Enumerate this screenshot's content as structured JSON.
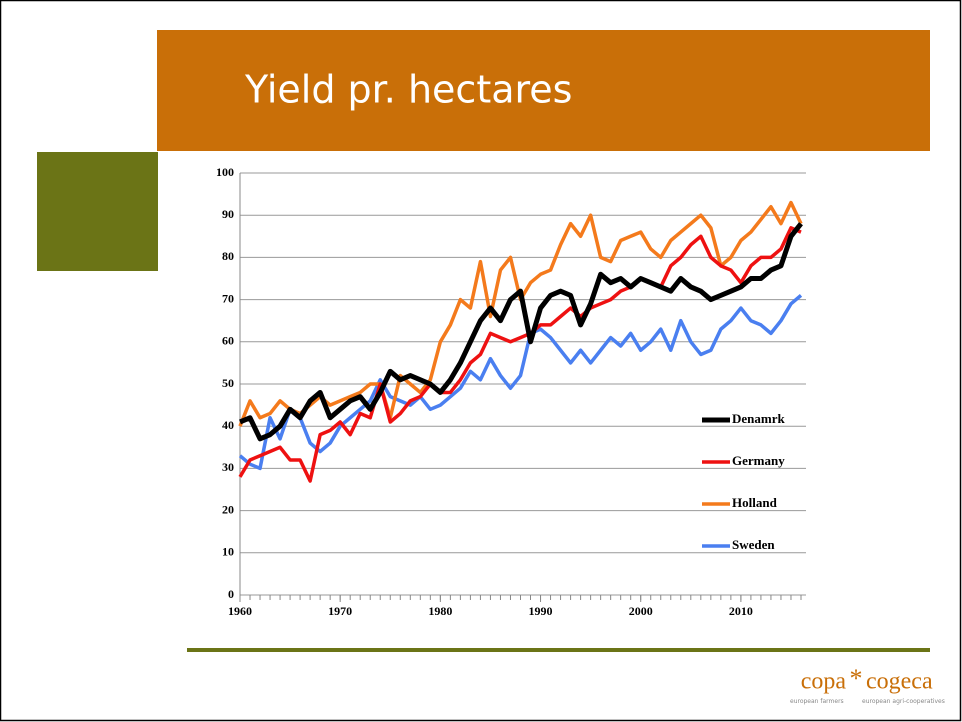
{
  "chart_data": {
    "type": "line",
    "title": "Yield pr. hectares",
    "x": [
      1960,
      1961,
      1962,
      1963,
      1964,
      1965,
      1966,
      1967,
      1968,
      1969,
      1970,
      1971,
      1972,
      1973,
      1974,
      1975,
      1976,
      1977,
      1978,
      1979,
      1980,
      1981,
      1982,
      1983,
      1984,
      1985,
      1986,
      1987,
      1988,
      1989,
      1990,
      1991,
      1992,
      1993,
      1994,
      1995,
      1996,
      1997,
      1998,
      1999,
      2000,
      2001,
      2002,
      2003,
      2004,
      2005,
      2006,
      2007,
      2008,
      2009,
      2010,
      2011,
      2012,
      2013,
      2014,
      2015,
      2016
    ],
    "series": [
      {
        "name": "Denamrk",
        "color": "#000000",
        "values": [
          41,
          42,
          37,
          38,
          40,
          44,
          42,
          46,
          48,
          42,
          44,
          46,
          47,
          44,
          48,
          53,
          51,
          52,
          51,
          50,
          48,
          51,
          55,
          60,
          65,
          68,
          65,
          70,
          72,
          60,
          68,
          71,
          72,
          71,
          64,
          69,
          76,
          74,
          75,
          73,
          75,
          74,
          73,
          72,
          75,
          73,
          72,
          70,
          71,
          72,
          73,
          75,
          75,
          77,
          78,
          85,
          88
        ]
      },
      {
        "name": "Germany",
        "color": "#ee1111",
        "values": [
          28,
          32,
          33,
          34,
          35,
          32,
          32,
          27,
          38,
          39,
          41,
          38,
          43,
          42,
          50,
          41,
          43,
          46,
          47,
          50,
          48,
          48,
          51,
          55,
          57,
          62,
          61,
          60,
          61,
          62,
          64,
          64,
          66,
          68,
          66,
          68,
          69,
          70,
          72,
          73,
          75,
          74,
          73,
          78,
          80,
          83,
          85,
          80,
          78,
          77,
          74,
          78,
          80,
          80,
          82,
          87,
          86
        ]
      },
      {
        "name": "Holland",
        "color": "#f47a1c",
        "values": [
          40,
          46,
          42,
          43,
          46,
          44,
          43,
          45,
          47,
          45,
          46,
          47,
          48,
          50,
          50,
          42,
          52,
          50,
          48,
          51,
          60,
          64,
          70,
          68,
          79,
          66,
          77,
          80,
          70,
          74,
          76,
          77,
          83,
          88,
          85,
          90,
          80,
          79,
          84,
          85,
          86,
          82,
          80,
          84,
          86,
          88,
          90,
          87,
          78,
          80,
          84,
          86,
          89,
          92,
          88,
          93,
          88
        ]
      },
      {
        "name": "Sweden",
        "color": "#4a7ff0",
        "values": [
          33,
          31,
          30,
          42,
          37,
          44,
          42,
          36,
          34,
          36,
          40,
          42,
          44,
          46,
          51,
          47,
          46,
          45,
          47,
          44,
          45,
          47,
          49,
          53,
          51,
          56,
          52,
          49,
          52,
          62,
          63,
          61,
          58,
          55,
          58,
          55,
          58,
          61,
          59,
          62,
          58,
          60,
          63,
          58,
          65,
          60,
          57,
          58,
          63,
          65,
          68,
          65,
          64,
          62,
          65,
          69,
          71
        ]
      }
    ],
    "xlim": [
      1960,
      2016.5
    ],
    "xticks": [
      1960,
      1970,
      1980,
      1990,
      2000,
      2010
    ],
    "ylim": [
      0,
      100
    ],
    "yticks": [
      0,
      10,
      20,
      30,
      40,
      50,
      60,
      70,
      80,
      90,
      100
    ],
    "grid": true,
    "legend": "right"
  },
  "logo": {
    "left": "copa",
    "star": "*",
    "right": "cogeca",
    "sub_left": "european farmers",
    "sub_right": "european agri-cooperatives"
  }
}
